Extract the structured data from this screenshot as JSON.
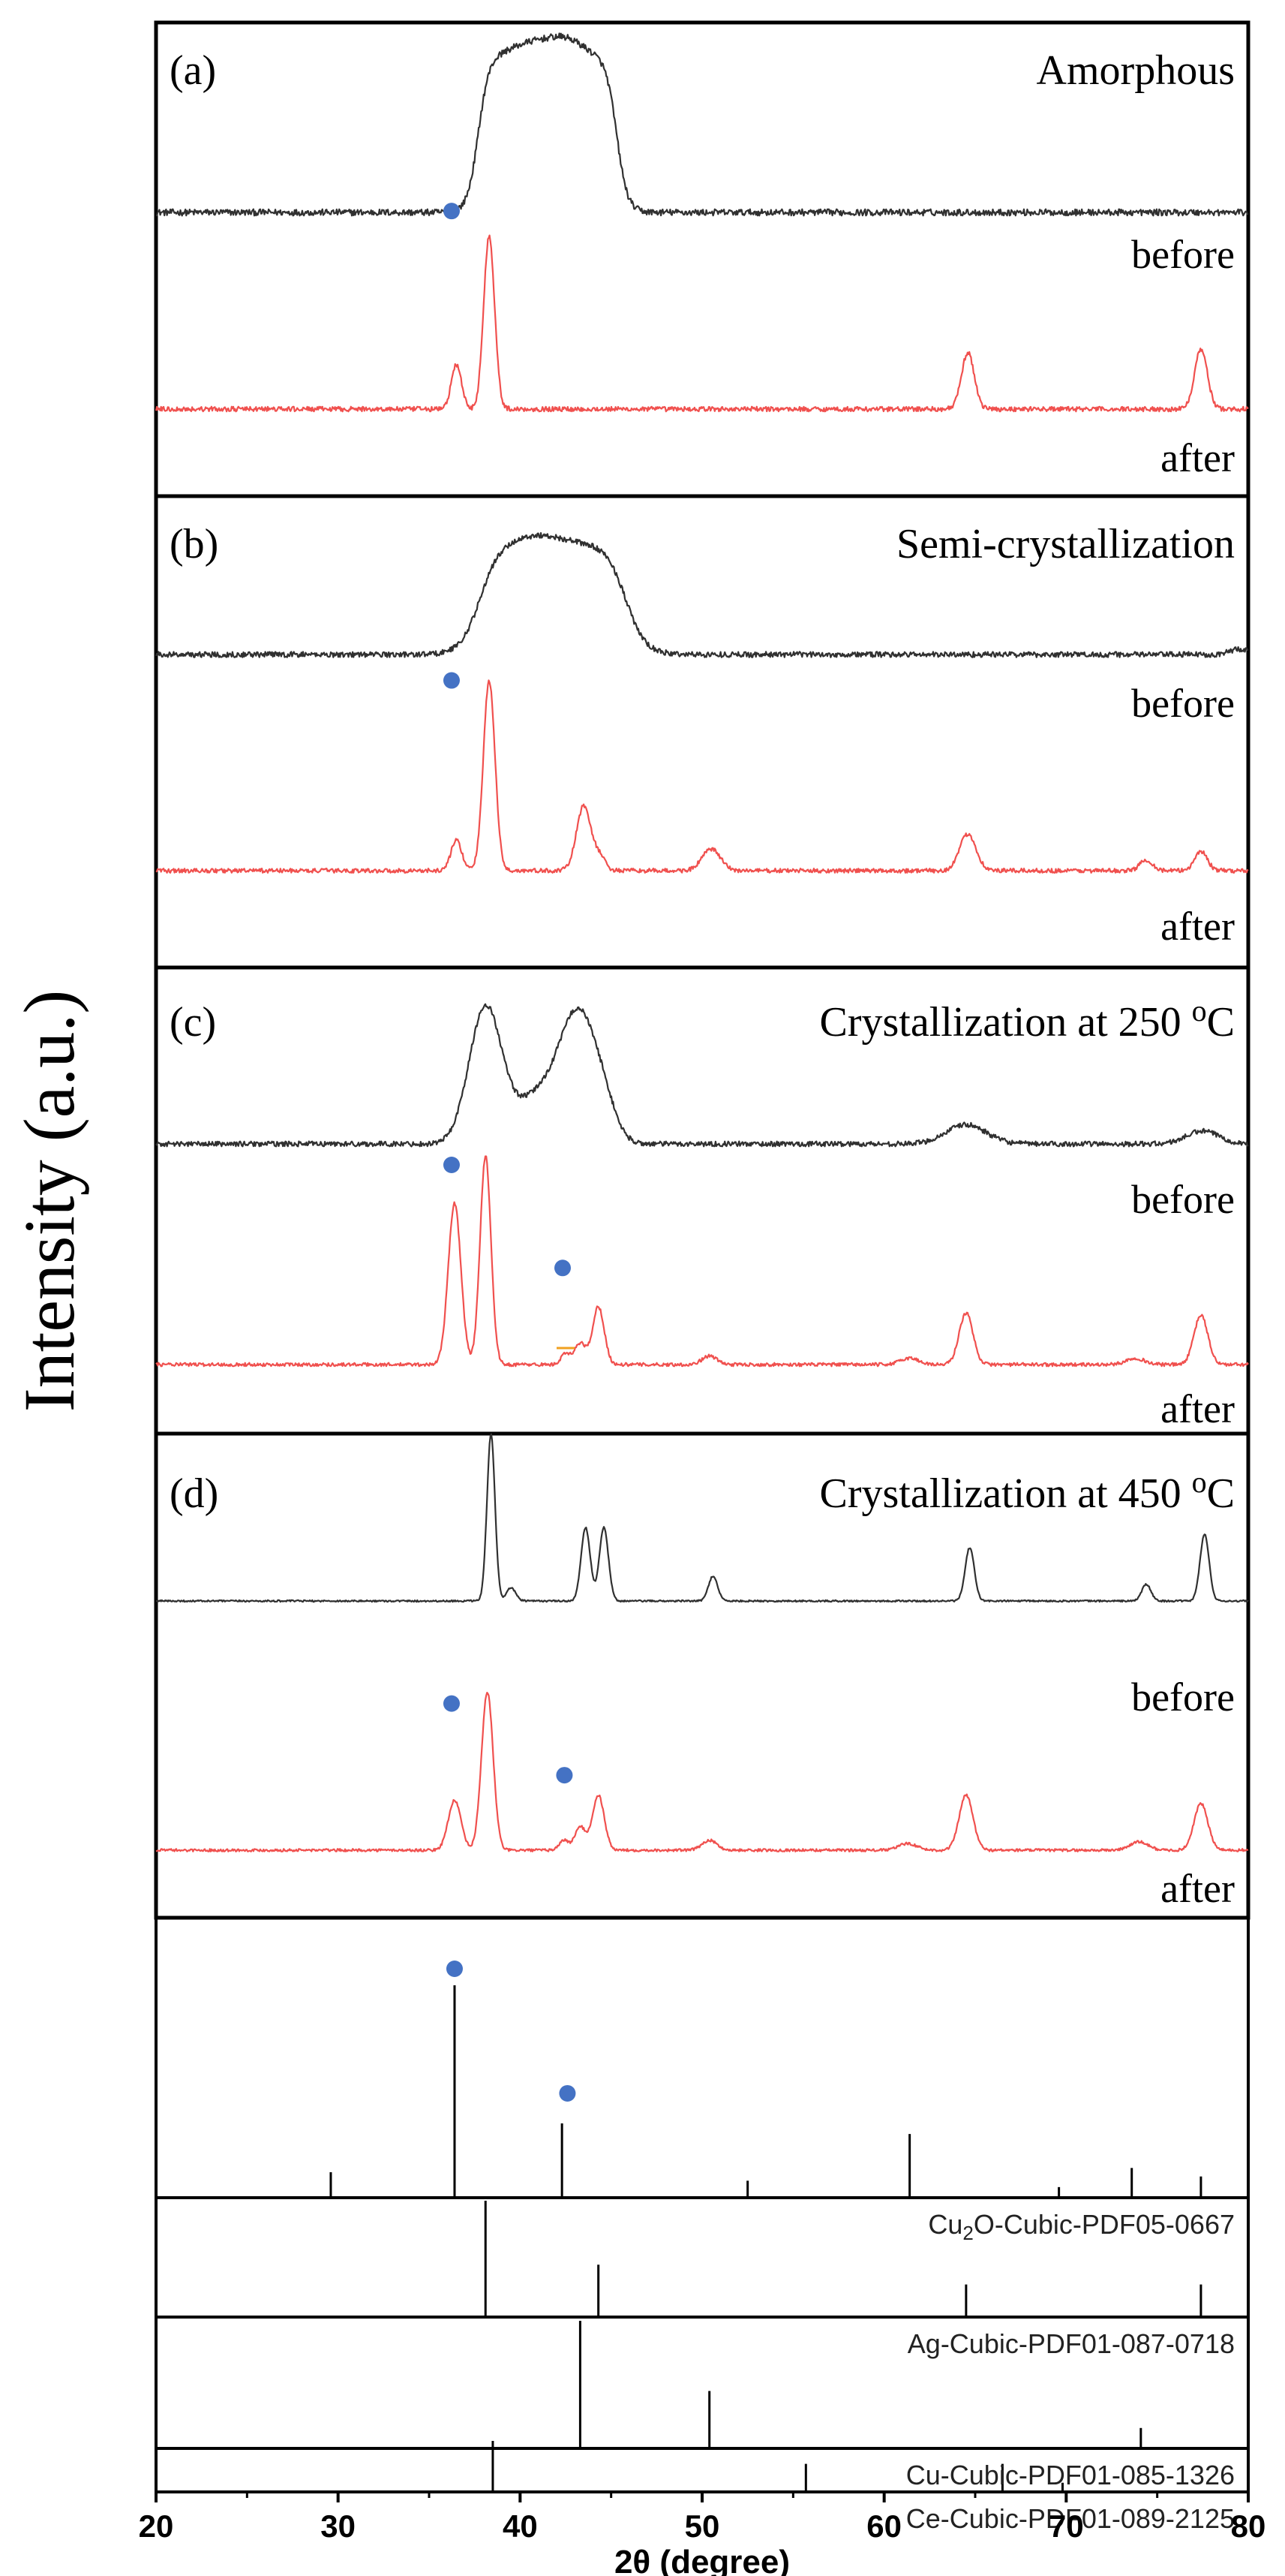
{
  "chart_data": {
    "type": "line",
    "xlabel": "2θ (degree)",
    "ylabel": "Intensity (a.u.)",
    "xlim": [
      20,
      80
    ],
    "xticks": [
      20,
      30,
      40,
      50,
      60,
      70,
      80
    ],
    "trace_labels": {
      "before": "before",
      "after": "after"
    },
    "colors": {
      "before": "#303030",
      "after": "#f0504e",
      "marker": "#4472c4",
      "axis": "#000000",
      "small_dash": "#f0a020"
    },
    "panels": [
      {
        "id": "a",
        "tag": "(a)",
        "title": "Amorphous",
        "before": {
          "peaks": [
            {
              "type": "plateau",
              "start": 37.7,
              "end": 45.3,
              "ramp": 0.9,
              "height": 0.58,
              "hump": [
                [
                  40.8,
                  0.05,
                  1.2
                ],
                [
                  42.6,
                  0.05,
                  0.9
                ]
              ]
            }
          ],
          "noise": 0.012
        },
        "after": {
          "peaks": [
            [
              36.5,
              0.22,
              0.28
            ],
            [
              38.3,
              0.86,
              0.3
            ],
            [
              64.6,
              0.28,
              0.35
            ],
            [
              77.4,
              0.3,
              0.35
            ]
          ],
          "noise": 0.012
        },
        "markers": [
          36.4
        ]
      },
      {
        "id": "b",
        "tag": "(b)",
        "title": "Semi-crystallization",
        "before": {
          "peaks": [
            {
              "type": "plateau",
              "start": 37.8,
              "end": 45.8,
              "ramp": 1.6,
              "height": 0.4,
              "hump": [
                [
                  41.0,
                  0.03,
                  1.3
                ]
              ]
            },
            [
              79.5,
              0.02,
              0.5
            ]
          ],
          "noise": 0.01
        },
        "after": {
          "peaks": [
            [
              36.5,
              0.14,
              0.3
            ],
            [
              38.3,
              0.88,
              0.32
            ],
            [
              43.5,
              0.3,
              0.4
            ],
            [
              44.4,
              0.06,
              0.3
            ],
            [
              50.5,
              0.1,
              0.5
            ],
            [
              64.6,
              0.17,
              0.45
            ],
            [
              74.4,
              0.05,
              0.35
            ],
            [
              77.4,
              0.09,
              0.35
            ]
          ],
          "noise": 0.01
        },
        "markers": [
          36.4
        ]
      },
      {
        "id": "c",
        "tag": "(c)",
        "title": "Crystallization at 250 ",
        "title_unit": "oC",
        "before": {
          "peaks": [
            [
              38.1,
              0.64,
              0.9
            ],
            [
              41.0,
              0.22,
              1.2
            ],
            [
              43.2,
              0.58,
              1.0
            ],
            [
              44.6,
              0.12,
              0.7
            ],
            [
              64.5,
              0.09,
              1.1
            ],
            [
              77.5,
              0.06,
              0.9
            ]
          ],
          "noise": 0.012
        },
        "after": {
          "peaks": [
            [
              36.4,
              0.75,
              0.35
            ],
            [
              38.1,
              0.97,
              0.3
            ],
            [
              42.5,
              0.05,
              0.25
            ],
            [
              43.3,
              0.1,
              0.3
            ],
            [
              44.3,
              0.27,
              0.32
            ],
            [
              50.4,
              0.04,
              0.4
            ],
            [
              61.4,
              0.03,
              0.5
            ],
            [
              64.5,
              0.24,
              0.38
            ],
            [
              73.8,
              0.03,
              0.5
            ],
            [
              77.4,
              0.23,
              0.38
            ]
          ],
          "noise": 0.008
        },
        "markers": [
          36.4,
          42.5
        ],
        "small_dash_at": 42.5
      },
      {
        "id": "d",
        "tag": "(d)",
        "title": "Crystallization at 450 ",
        "title_unit": "oC",
        "before": {
          "peaks": [
            [
              38.4,
              1.0,
              0.22
            ],
            [
              39.5,
              0.08,
              0.25
            ],
            [
              43.6,
              0.44,
              0.25
            ],
            [
              44.6,
              0.44,
              0.25
            ],
            [
              50.6,
              0.15,
              0.25
            ],
            [
              64.7,
              0.32,
              0.25
            ],
            [
              74.4,
              0.1,
              0.25
            ],
            [
              77.6,
              0.4,
              0.25
            ]
          ],
          "noise": 0.005
        },
        "after": {
          "peaks": [
            [
              36.4,
              0.3,
              0.35
            ],
            [
              38.2,
              0.95,
              0.32
            ],
            [
              42.4,
              0.06,
              0.25
            ],
            [
              43.3,
              0.14,
              0.3
            ],
            [
              44.3,
              0.33,
              0.32
            ],
            [
              50.4,
              0.06,
              0.4
            ],
            [
              61.3,
              0.04,
              0.5
            ],
            [
              64.5,
              0.33,
              0.38
            ],
            [
              74.0,
              0.05,
              0.5
            ],
            [
              77.4,
              0.28,
              0.38
            ]
          ],
          "noise": 0.008
        },
        "markers": [
          36.4,
          42.6
        ]
      }
    ],
    "references": [
      {
        "label_parts": [
          "Cu",
          "2",
          "O-Cubic-PDF05-0667"
        ],
        "lines": [
          [
            29.6,
            0.12
          ],
          [
            36.4,
            1.0
          ],
          [
            42.3,
            0.35
          ],
          [
            52.5,
            0.08
          ],
          [
            61.4,
            0.3
          ],
          [
            69.6,
            0.05
          ],
          [
            73.6,
            0.14
          ],
          [
            77.4,
            0.1
          ]
        ],
        "markers": [
          36.4,
          42.6
        ]
      },
      {
        "label_parts": [
          "Ag-Cubic-PDF01-087-0718"
        ],
        "lines": [
          [
            38.1,
            1.0
          ],
          [
            44.3,
            0.45
          ],
          [
            64.5,
            0.28
          ],
          [
            77.4,
            0.28
          ]
        ],
        "markers": []
      },
      {
        "label_parts": [
          "Cu-Cubic-PDF01-085-1326"
        ],
        "lines": [
          [
            43.3,
            1.0
          ],
          [
            50.4,
            0.45
          ],
          [
            74.1,
            0.16
          ]
        ],
        "markers": []
      },
      {
        "label_parts": [
          "Ce-Cubic-PDF01-089-2125"
        ],
        "lines": [
          [
            38.5,
            1.0
          ],
          [
            55.7,
            0.55
          ],
          [
            66.5,
            0.55
          ],
          [
            69.8,
            0.18
          ]
        ],
        "markers": []
      }
    ]
  }
}
